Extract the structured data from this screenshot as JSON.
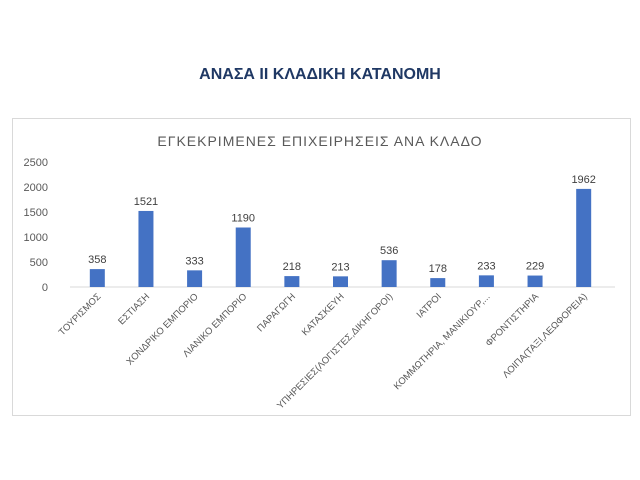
{
  "slide": {
    "title": "ΑΝΑΣΑ ΙΙ ΚΛΑΔΙΚΗ ΚΑΤΑΝΟΜΗ"
  },
  "colors": {
    "bar": "#4472c4",
    "title": "#1f3864",
    "axis_text": "#595959",
    "frame": "#d9d9d9"
  },
  "chart_data": {
    "type": "bar",
    "title": "ΕΓΚΕΚΡΙΜΕΝΕΣ ΕΠΙΧΕΙΡΗΣΕΙΣ ΑΝΑ ΚΛΑΔΟ",
    "categories": [
      "ΤΟΥΡΙΣΜΟΣ",
      "ΕΣΤΙΑΣΗ",
      "ΧΟΝΔΡΙΚΟ ΕΜΠΟΡΙΟ",
      "ΛΙΑΝΙΚΟ ΕΜΠΟΡΙΟ",
      "ΠΑΡΑΓΩΓΗ",
      "ΚΑΤΑΣΚΕΥΗ",
      "ΥΠΗΡΕΣΙΕΣ(ΛΟΓΙΣΤΕΣ,ΔΙΚΗΓΟΡΟΙ)",
      "ΙΑΤΡΟΙ",
      "ΚΟΜΜΩΤΗΡΙΑ, ΜΑΝΙΚΙΟΥΡ,...",
      "ΦΡΟΝΤΙΣΤΗΡΙΑ",
      "ΛΟΙΠΑ(ΤΑΞΙ,ΛΕΩΦΟΡΕΙΑ)"
    ],
    "values": [
      358,
      1521,
      333,
      1190,
      218,
      213,
      536,
      178,
      233,
      229,
      1962
    ],
    "yticks": [
      0,
      500,
      1000,
      1500,
      2000,
      2500
    ],
    "ylim": [
      0,
      2500
    ],
    "grid": false,
    "legend": "none"
  }
}
